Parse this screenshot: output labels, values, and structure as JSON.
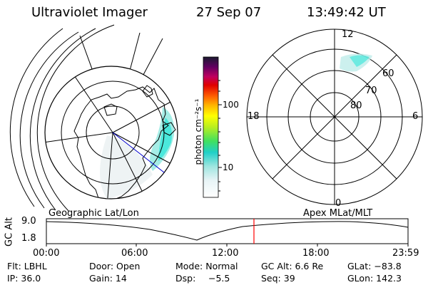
{
  "header": {
    "instrument": "Ultraviolet Imager",
    "date": "27 Sep 07",
    "time": "13:49:42 UT"
  },
  "colorbar": {
    "unit_label": "photon cm⁻²s⁻¹",
    "ticks": [
      "100",
      "10"
    ]
  },
  "polar_plot": {
    "mlt_labels": {
      "top": "12",
      "left": "18",
      "right": "6",
      "bottom": "0"
    },
    "lat_labels": [
      "60",
      "70",
      "80"
    ]
  },
  "timeline": {
    "ylabel": "GC Alt",
    "y_ticks": [
      "9.0",
      "1.8"
    ],
    "left_title": "Geographic Lat/Lon",
    "right_title": "Apex MLat/MLT",
    "x_ticks": [
      "00:00",
      "06:00",
      "12:00",
      "18:00",
      "23:59"
    ],
    "current_marker_color": "#ff0000"
  },
  "info": {
    "row1": {
      "filter": "Flt: LBHL",
      "door": "Door: Open",
      "mode": "Mode: Normal",
      "gc_alt": "GC Alt: 6.6 Re",
      "glat": "GLat: −83.8"
    },
    "row2": {
      "ip": "IP: 36.0",
      "gain": "Gain: 14",
      "dsp_label": "Dsp:",
      "dsp_value": "−5.5",
      "seq": "Seq: 39",
      "glon": "GLon: 142.3"
    }
  },
  "aurora_color": "#2ee6d8"
}
